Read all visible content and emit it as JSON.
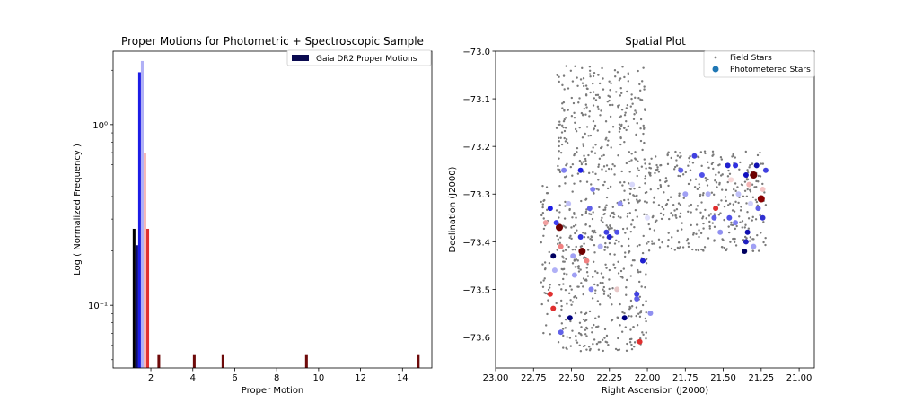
{
  "chart_data": [
    {
      "type": "bar",
      "title": "Proper Motions for Photometric + Spectroscopic Sample",
      "xlabel": "Proper Motion",
      "ylabel": "Log ( Normalized Frequency )",
      "yscale": "log",
      "xlim": [
        0.2,
        15.4
      ],
      "ylim": [
        0.045,
        2.55
      ],
      "xticks": [
        2,
        4,
        6,
        8,
        10,
        12,
        14
      ],
      "xtick_labels": [
        "2",
        "4",
        "6",
        "8",
        "10",
        "12",
        "14"
      ],
      "yticks": [
        0.1,
        1
      ],
      "ytick_labels": [
        "10⁻¹",
        "10⁰"
      ],
      "legend": {
        "placement": "top-right",
        "entries": [
          {
            "label": "Gaia DR2 Proper Motions",
            "color": "#0a0a50"
          }
        ]
      },
      "bar_width": 0.13,
      "bars": [
        {
          "x": 1.2,
          "y": 0.265,
          "color": "#000000"
        },
        {
          "x": 1.33,
          "y": 0.215,
          "color": "#0a0a78"
        },
        {
          "x": 1.46,
          "y": 1.95,
          "color": "#1c1ce6"
        },
        {
          "x": 1.59,
          "y": 2.25,
          "color": "#b0b0f6"
        },
        {
          "x": 1.72,
          "y": 0.7,
          "color": "#f6b8b8"
        },
        {
          "x": 1.85,
          "y": 0.265,
          "color": "#e03030"
        },
        {
          "x": 2.38,
          "y": 0.053,
          "color": "#6e0a0a"
        },
        {
          "x": 4.07,
          "y": 0.053,
          "color": "#6e0a0a"
        },
        {
          "x": 5.44,
          "y": 0.053,
          "color": "#6e0a0a"
        },
        {
          "x": 9.42,
          "y": 0.053,
          "color": "#6e0a0a"
        },
        {
          "x": 14.75,
          "y": 0.053,
          "color": "#6e0a0a"
        }
      ]
    },
    {
      "type": "scatter",
      "title": "Spatial Plot",
      "xlabel": "Right Ascension (J2000)",
      "ylabel": "Declination (J2000)",
      "x_inverted": true,
      "xlim": [
        23.0,
        20.9
      ],
      "ylim": [
        -73.665,
        -73.0
      ],
      "xticks": [
        23.0,
        22.75,
        22.5,
        22.25,
        22.0,
        21.75,
        21.5,
        21.25,
        21.0
      ],
      "xtick_labels": [
        "23.00",
        "22.75",
        "22.50",
        "22.25",
        "22.00",
        "21.75",
        "21.50",
        "21.25",
        "21.00"
      ],
      "yticks": [
        -73.0,
        -73.1,
        -73.2,
        -73.3,
        -73.4,
        -73.5,
        -73.6
      ],
      "ytick_labels": [
        "−73.0",
        "−73.1",
        "−73.2",
        "−73.3",
        "−73.4",
        "−73.5",
        "−73.6"
      ],
      "legend": {
        "placement": "top-right",
        "entries": [
          {
            "label": "Field Stars",
            "color": "#808080",
            "marker": "small-dot"
          },
          {
            "label": "Photometered Stars",
            "color": "#1f77b4",
            "marker": "dot"
          }
        ]
      },
      "field_regions": [
        {
          "ra": [
            22.0,
            22.6
          ],
          "dec": [
            -73.63,
            -73.03
          ],
          "count": 700
        },
        {
          "ra": [
            22.64,
            22.7
          ],
          "dec": [
            -73.6,
            -73.25
          ],
          "count": 40
        },
        {
          "ra": [
            21.22,
            22.0
          ],
          "dec": [
            -73.42,
            -73.21
          ],
          "count": 340
        }
      ],
      "field_color": "#7a7a7a",
      "photometered_stars": [
        {
          "ra": 22.58,
          "dec": -73.37,
          "color": "#6e0000",
          "size": 4
        },
        {
          "ra": 22.43,
          "dec": -73.42,
          "color": "#6e0000",
          "size": 4
        },
        {
          "ra": 21.3,
          "dec": -73.26,
          "color": "#6e0000",
          "size": 4
        },
        {
          "ra": 21.25,
          "dec": -73.31,
          "color": "#8b0000",
          "size": 4
        },
        {
          "ra": 22.62,
          "dec": -73.43,
          "color": "#000060",
          "size": 3
        },
        {
          "ra": 21.36,
          "dec": -73.42,
          "color": "#000060",
          "size": 3
        },
        {
          "ra": 22.51,
          "dec": -73.56,
          "color": "#000080",
          "size": 3
        },
        {
          "ra": 22.15,
          "dec": -73.56,
          "color": "#000080",
          "size": 3
        },
        {
          "ra": 22.05,
          "dec": -73.61,
          "color": "#e03030",
          "size": 3
        },
        {
          "ra": 22.64,
          "dec": -73.51,
          "color": "#e03030",
          "size": 3
        },
        {
          "ra": 22.62,
          "dec": -73.54,
          "color": "#e03030",
          "size": 3
        },
        {
          "ra": 21.55,
          "dec": -73.33,
          "color": "#e03030",
          "size": 3
        },
        {
          "ra": 22.57,
          "dec": -73.41,
          "color": "#f08080",
          "size": 3
        },
        {
          "ra": 22.67,
          "dec": -73.36,
          "color": "#f0a0a0",
          "size": 3
        },
        {
          "ra": 22.4,
          "dec": -73.44,
          "color": "#f08080",
          "size": 3
        },
        {
          "ra": 21.33,
          "dec": -73.28,
          "color": "#f4b4b4",
          "size": 3
        },
        {
          "ra": 21.24,
          "dec": -73.29,
          "color": "#f6c6c6",
          "size": 3
        },
        {
          "ra": 22.64,
          "dec": -73.33,
          "color": "#1c1ce6",
          "size": 3
        },
        {
          "ra": 22.6,
          "dec": -73.36,
          "color": "#4040f0",
          "size": 3
        },
        {
          "ra": 22.44,
          "dec": -73.39,
          "color": "#3030e0",
          "size": 3
        },
        {
          "ra": 22.44,
          "dec": -73.25,
          "color": "#2020e0",
          "size": 3
        },
        {
          "ra": 22.27,
          "dec": -73.38,
          "color": "#4040e0",
          "size": 3
        },
        {
          "ra": 22.25,
          "dec": -73.39,
          "color": "#2020d0",
          "size": 3
        },
        {
          "ra": 22.2,
          "dec": -73.38,
          "color": "#5050e8",
          "size": 3
        },
        {
          "ra": 22.03,
          "dec": -73.44,
          "color": "#2020d0",
          "size": 3
        },
        {
          "ra": 22.07,
          "dec": -73.51,
          "color": "#4040e0",
          "size": 3
        },
        {
          "ra": 22.07,
          "dec": -73.52,
          "color": "#6060e8",
          "size": 3
        },
        {
          "ra": 21.98,
          "dec": -73.55,
          "color": "#9090f0",
          "size": 3
        },
        {
          "ra": 21.69,
          "dec": -73.22,
          "color": "#4040e0",
          "size": 3
        },
        {
          "ra": 21.64,
          "dec": -73.26,
          "color": "#5050e8",
          "size": 3
        },
        {
          "ra": 21.78,
          "dec": -73.25,
          "color": "#6060e8",
          "size": 3
        },
        {
          "ra": 21.47,
          "dec": -73.24,
          "color": "#2020d0",
          "size": 3
        },
        {
          "ra": 21.42,
          "dec": -73.24,
          "color": "#3030e0",
          "size": 3
        },
        {
          "ra": 21.35,
          "dec": -73.26,
          "color": "#1010c0",
          "size": 3
        },
        {
          "ra": 21.28,
          "dec": -73.24,
          "color": "#1010b0",
          "size": 3
        },
        {
          "ra": 21.22,
          "dec": -73.25,
          "color": "#4040e0",
          "size": 3
        },
        {
          "ra": 21.34,
          "dec": -73.38,
          "color": "#1010b0",
          "size": 3
        },
        {
          "ra": 21.35,
          "dec": -73.4,
          "color": "#2020c0",
          "size": 3
        },
        {
          "ra": 21.46,
          "dec": -73.35,
          "color": "#5050e8",
          "size": 3
        },
        {
          "ra": 21.42,
          "dec": -73.36,
          "color": "#8080f0",
          "size": 3
        },
        {
          "ra": 21.27,
          "dec": -73.33,
          "color": "#6060e8",
          "size": 3
        },
        {
          "ra": 21.24,
          "dec": -73.35,
          "color": "#3030d0",
          "size": 3
        },
        {
          "ra": 21.3,
          "dec": -73.41,
          "color": "#a0a0f4",
          "size": 3
        },
        {
          "ra": 22.36,
          "dec": -73.29,
          "color": "#8080f0",
          "size": 3
        },
        {
          "ra": 22.38,
          "dec": -73.33,
          "color": "#6060e8",
          "size": 3
        },
        {
          "ra": 22.49,
          "dec": -73.43,
          "color": "#a0a0f4",
          "size": 3
        },
        {
          "ra": 22.52,
          "dec": -73.32,
          "color": "#c0c0f8",
          "size": 3
        },
        {
          "ra": 22.55,
          "dec": -73.25,
          "color": "#8080f0",
          "size": 3
        },
        {
          "ra": 22.61,
          "dec": -73.46,
          "color": "#b0b0f6",
          "size": 3
        },
        {
          "ra": 22.57,
          "dec": -73.59,
          "color": "#6060e8",
          "size": 3
        },
        {
          "ra": 22.37,
          "dec": -73.5,
          "color": "#8080f0",
          "size": 3
        },
        {
          "ra": 22.48,
          "dec": -73.47,
          "color": "#a0a0f4",
          "size": 3
        },
        {
          "ra": 22.31,
          "dec": -73.41,
          "color": "#b0b0f6",
          "size": 3
        },
        {
          "ra": 22.18,
          "dec": -73.32,
          "color": "#9090f0",
          "size": 3
        },
        {
          "ra": 21.56,
          "dec": -73.35,
          "color": "#6060e8",
          "size": 3
        },
        {
          "ra": 21.52,
          "dec": -73.38,
          "color": "#9090f0",
          "size": 3
        },
        {
          "ra": 21.6,
          "dec": -73.3,
          "color": "#b0b0f6",
          "size": 3
        },
        {
          "ra": 21.75,
          "dec": -73.3,
          "color": "#a0a0f4",
          "size": 3
        },
        {
          "ra": 21.4,
          "dec": -73.3,
          "color": "#c0c0f8",
          "size": 3
        },
        {
          "ra": 21.32,
          "dec": -73.32,
          "color": "#d0d0fa",
          "size": 3
        },
        {
          "ra": 22.0,
          "dec": -73.35,
          "color": "#e0e0fc",
          "size": 3
        },
        {
          "ra": 22.1,
          "dec": -73.28,
          "color": "#d8d8fa",
          "size": 3
        },
        {
          "ra": 22.2,
          "dec": -73.5,
          "color": "#e8c8c8",
          "size": 3
        },
        {
          "ra": 21.45,
          "dec": -73.27,
          "color": "#f8d8d8",
          "size": 3
        }
      ]
    }
  ]
}
